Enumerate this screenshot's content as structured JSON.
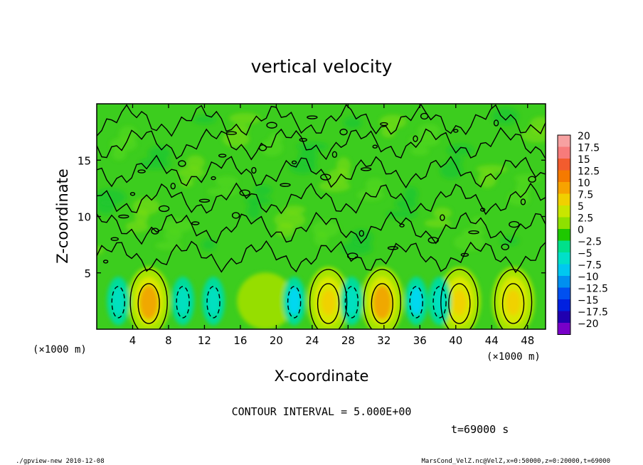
{
  "chart_data": {
    "type": "heatmap",
    "title": "vertical velocity",
    "xlabel": "X-coordinate",
    "ylabel": "Z-coordinate",
    "x_unit_left": "(×1000 m)",
    "x_unit_right": "(×1000 m)",
    "xlim": [
      0,
      50
    ],
    "ylim": [
      0,
      20
    ],
    "x_ticks": [
      4,
      8,
      12,
      16,
      20,
      24,
      28,
      32,
      36,
      40,
      44,
      48
    ],
    "y_ticks": [
      5,
      10,
      15
    ],
    "colorbar_labels": [
      "20",
      "17.5",
      "15",
      "12.5",
      "10",
      "7.5",
      "5",
      "2.5",
      "0",
      "−2.5",
      "−5",
      "−7.5",
      "−10",
      "−12.5",
      "−15",
      "−17.5",
      "−20"
    ],
    "colorbar_colors": [
      "#f7a1a1",
      "#f77b7b",
      "#f25c2e",
      "#f57a00",
      "#f7a300",
      "#f0d000",
      "#c8e600",
      "#8ee000",
      "#1ec800",
      "#00e08a",
      "#00e0c8",
      "#00c8f0",
      "#0090f0",
      "#0050f0",
      "#0020e0",
      "#2000b0",
      "#7800c8"
    ],
    "contour_interval": "CONTOUR INTERVAL = 5.000E+00",
    "time": "t=69000 s",
    "updraft_centers_x": [
      5.8,
      25.8,
      31.8,
      40.4,
      46.4
    ],
    "downdraft_centers_x": [
      2.4,
      9.6,
      13.0,
      22.0,
      28.4,
      35.6,
      38.2
    ],
    "grid": false
  },
  "footer": {
    "left": "./gpview-new   2010-12-08",
    "right": "MarsCond_VelZ.nc@VelZ,x=0:50000,z=0:20000,t=69000"
  }
}
